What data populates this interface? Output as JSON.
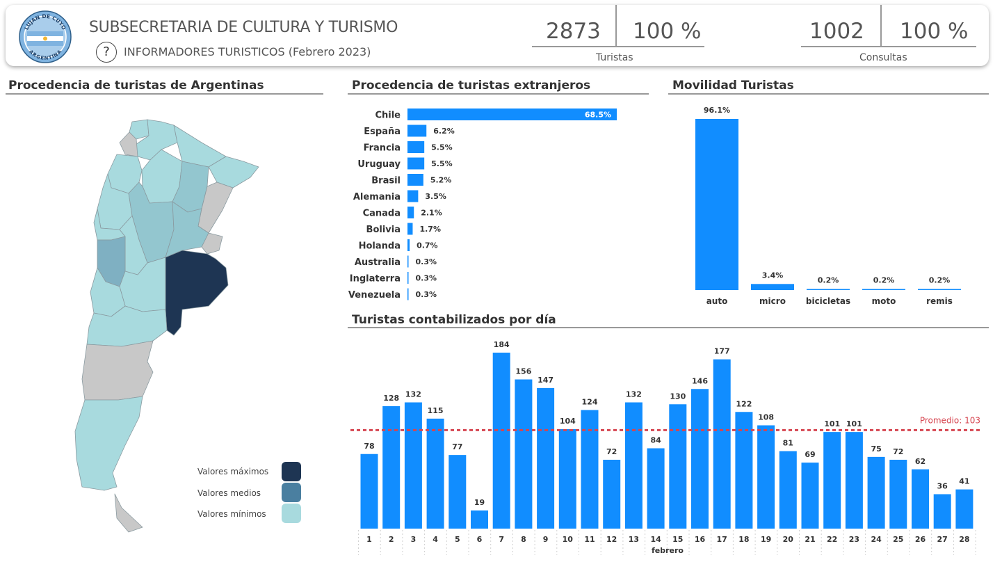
{
  "header": {
    "org_title": "SUBSECRETARIA DE CULTURA Y TURISMO",
    "help_symbol": "?",
    "report_subtitle": "INFORMADORES TURISTICOS (Febrero 2023)",
    "logo_top_text": "LUJAN DE CUYO",
    "logo_bottom_text": "ARGENTINA"
  },
  "kpis": {
    "turistas": {
      "value": "2873",
      "percent": "100 %",
      "label": "Turistas"
    },
    "consultas": {
      "value": "1002",
      "percent": "100 %",
      "label": "Consultas"
    }
  },
  "sections": {
    "argentina_title": "Procedencia de turistas de Argentinas",
    "extranjeros_title": "Procedencia de turistas extranjeros",
    "movilidad_title": "Movilidad Turistas",
    "dia_title": "Turistas contabilizados por día"
  },
  "map_legend": {
    "max_label": "Valores máximos",
    "mid_label": "Valores medios",
    "min_label": "Valores mínimos",
    "max_color": "#1e3553",
    "mid_color": "#4a7fa0",
    "min_color": "#a8dade"
  },
  "colors": {
    "bar": "#118dff",
    "average_line": "#d64550",
    "map_gray": "#c8c8c8"
  },
  "chart_data": [
    {
      "type": "bar",
      "orientation": "horizontal",
      "categories": [
        "Chile",
        "España",
        "Francia",
        "Uruguay",
        "Brasil",
        "Alemania",
        "Canada",
        "Bolivia",
        "Holanda",
        "Australia",
        "Inglaterra",
        "Venezuela"
      ],
      "values": [
        68.5,
        6.2,
        5.5,
        5.5,
        5.2,
        3.5,
        2.1,
        1.7,
        0.7,
        0.3,
        0.3,
        0.3
      ],
      "labels": [
        "68.5%",
        "6.2%",
        "5.5%",
        "5.5%",
        "5.2%",
        "3.5%",
        "2.1%",
        "1.7%",
        "0.7%",
        "0.3%",
        "0.3%",
        "0.3%"
      ],
      "title": "Procedencia de turistas extranjeros"
    },
    {
      "type": "bar",
      "categories": [
        "auto",
        "micro",
        "bicicletas",
        "moto",
        "remis"
      ],
      "values": [
        96.1,
        3.4,
        0.2,
        0.2,
        0.2
      ],
      "labels": [
        "96.1%",
        "3.4%",
        "0.2%",
        "0.2%",
        "0.2%"
      ],
      "title": "Movilidad Turistas"
    },
    {
      "type": "bar",
      "categories": [
        "1",
        "2",
        "3",
        "4",
        "5",
        "6",
        "7",
        "8",
        "9",
        "10",
        "11",
        "12",
        "13",
        "14",
        "15",
        "16",
        "17",
        "18",
        "19",
        "20",
        "21",
        "22",
        "23",
        "24",
        "25",
        "26",
        "27",
        "28"
      ],
      "values": [
        78,
        128,
        132,
        115,
        77,
        19,
        184,
        156,
        147,
        104,
        124,
        72,
        132,
        84,
        130,
        146,
        177,
        122,
        108,
        81,
        69,
        101,
        101,
        75,
        72,
        62,
        36,
        41
      ],
      "xlabel": "febrero",
      "average": 103,
      "average_label": "Promedio: 103",
      "title": "Turistas contabilizados por día"
    }
  ]
}
